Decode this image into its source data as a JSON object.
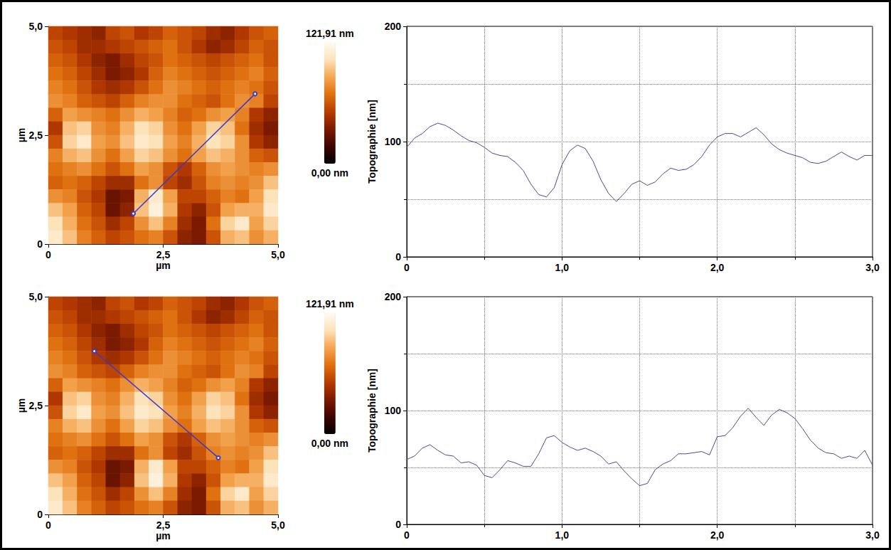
{
  "chart_data": [
    {
      "type": "heatmap",
      "xlabel": "µm",
      "ylabel": "µm",
      "xlim": [
        0,
        5
      ],
      "ylim": [
        0,
        5
      ],
      "xticks": [
        0,
        {
          "value": 2.5,
          "label": "2,5"
        },
        {
          "value": 5,
          "label": "5,0"
        }
      ],
      "yticks": [
        0,
        {
          "value": 2.5,
          "label": "2,5"
        },
        {
          "value": 5,
          "label": "5,0"
        }
      ],
      "cells": [
        [
          55,
          50,
          45,
          40,
          55,
          60,
          50,
          55,
          65,
          60,
          55,
          45,
          40,
          50,
          60,
          65
        ],
        [
          60,
          55,
          45,
          45,
          50,
          55,
          60,
          65,
          70,
          60,
          50,
          40,
          45,
          55,
          65,
          60
        ],
        [
          65,
          60,
          50,
          40,
          35,
          45,
          55,
          60,
          70,
          65,
          60,
          55,
          60,
          65,
          70,
          60
        ],
        [
          70,
          65,
          55,
          45,
          35,
          40,
          50,
          65,
          75,
          70,
          65,
          60,
          65,
          70,
          75,
          65
        ],
        [
          75,
          70,
          60,
          50,
          45,
          50,
          60,
          70,
          80,
          75,
          70,
          65,
          70,
          75,
          70,
          60
        ],
        [
          80,
          75,
          65,
          60,
          55,
          65,
          75,
          80,
          80,
          70,
          65,
          60,
          70,
          80,
          75,
          55
        ],
        [
          65,
          85,
          80,
          75,
          70,
          80,
          90,
          85,
          75,
          65,
          70,
          80,
          85,
          75,
          50,
          40
        ],
        [
          50,
          95,
          100,
          80,
          75,
          90,
          105,
          100,
          80,
          70,
          85,
          100,
          95,
          70,
          45,
          35
        ],
        [
          60,
          100,
          110,
          85,
          80,
          95,
          110,
          105,
          85,
          75,
          90,
          105,
          100,
          80,
          50,
          40
        ],
        [
          75,
          90,
          95,
          80,
          70,
          85,
          100,
          95,
          80,
          70,
          85,
          95,
          90,
          80,
          65,
          60
        ],
        [
          70,
          75,
          80,
          70,
          60,
          70,
          85,
          80,
          60,
          50,
          65,
          80,
          85,
          80,
          75,
          80
        ],
        [
          65,
          70,
          65,
          55,
          45,
          45,
          70,
          80,
          55,
          45,
          60,
          75,
          80,
          75,
          80,
          95
        ],
        [
          80,
          75,
          60,
          50,
          30,
          35,
          90,
          110,
          85,
          55,
          55,
          65,
          75,
          70,
          85,
          105
        ],
        [
          95,
          85,
          65,
          55,
          30,
          40,
          95,
          115,
          90,
          50,
          40,
          60,
          85,
          90,
          90,
          110
        ],
        [
          105,
          90,
          70,
          60,
          45,
          55,
          80,
          95,
          75,
          45,
          35,
          70,
          100,
          110,
          85,
          100
        ],
        [
          110,
          95,
          75,
          65,
          55,
          60,
          70,
          75,
          60,
          40,
          35,
          60,
          90,
          95,
          80,
          90
        ]
      ],
      "colorbar": {
        "range": [
          0,
          121.91
        ],
        "ticks": [
          {
            "value": 0,
            "label": "0,00 nm"
          },
          {
            "value": 121.91,
            "label": "121,91 nm"
          }
        ]
      },
      "profile_line": {
        "x": [
          1.85,
          4.5
        ],
        "y": [
          0.7,
          3.45
        ],
        "color": "#3a3ad0"
      }
    },
    {
      "type": "line",
      "ylabel": "Topographie [nm]",
      "xlim": [
        0,
        3
      ],
      "ylim": [
        0,
        200
      ],
      "xticks": [
        0,
        {
          "value": 1,
          "label": "1,0"
        },
        {
          "value": 2,
          "label": "2,0"
        },
        {
          "value": 3,
          "label": "3,0"
        }
      ],
      "yticks": [
        0,
        100,
        200
      ],
      "grid": true,
      "color": "#4a4a9a",
      "x": [
        0,
        0.05,
        0.1,
        0.15,
        0.2,
        0.25,
        0.3,
        0.35,
        0.4,
        0.45,
        0.5,
        0.55,
        0.6,
        0.65,
        0.7,
        0.75,
        0.8,
        0.85,
        0.9,
        0.95,
        1.0,
        1.05,
        1.1,
        1.15,
        1.2,
        1.25,
        1.3,
        1.35,
        1.4,
        1.45,
        1.5,
        1.55,
        1.6,
        1.65,
        1.7,
        1.75,
        1.8,
        1.85,
        1.9,
        1.95,
        2.0,
        2.05,
        2.1,
        2.15,
        2.2,
        2.25,
        2.3,
        2.35,
        2.4,
        2.45,
        2.5,
        2.55,
        2.6,
        2.65,
        2.7,
        2.75,
        2.8,
        2.85,
        2.9,
        2.95,
        3.0
      ],
      "values": [
        95,
        103,
        107,
        113,
        116,
        114,
        110,
        105,
        101,
        99,
        95,
        90,
        88,
        87,
        82,
        75,
        63,
        54,
        52,
        60,
        80,
        92,
        97,
        94,
        83,
        67,
        55,
        48,
        55,
        63,
        66,
        62,
        65,
        72,
        77,
        75,
        76,
        80,
        87,
        97,
        104,
        107,
        107,
        104,
        108,
        112,
        106,
        98,
        93,
        90,
        88,
        86,
        82,
        81,
        83,
        87,
        91,
        87,
        84,
        88,
        88
      ]
    },
    {
      "type": "heatmap",
      "xlabel": "µm",
      "ylabel": "µm",
      "xlim": [
        0,
        5
      ],
      "ylim": [
        0,
        5
      ],
      "xticks": [
        0,
        {
          "value": 2.5,
          "label": "2,5"
        },
        {
          "value": 5,
          "label": "5,0"
        }
      ],
      "yticks": [
        0,
        {
          "value": 2.5,
          "label": "2,5"
        },
        {
          "value": 5,
          "label": "5,0"
        }
      ],
      "cells": [
        [
          55,
          50,
          45,
          40,
          55,
          60,
          50,
          55,
          65,
          60,
          55,
          45,
          40,
          50,
          60,
          65
        ],
        [
          60,
          55,
          45,
          45,
          50,
          55,
          60,
          65,
          70,
          60,
          50,
          40,
          45,
          55,
          65,
          60
        ],
        [
          65,
          60,
          50,
          40,
          35,
          45,
          55,
          60,
          70,
          65,
          60,
          55,
          60,
          65,
          70,
          60
        ],
        [
          70,
          65,
          55,
          45,
          35,
          40,
          50,
          65,
          75,
          70,
          65,
          60,
          65,
          70,
          75,
          65
        ],
        [
          75,
          70,
          60,
          50,
          45,
          50,
          60,
          70,
          80,
          75,
          70,
          65,
          70,
          75,
          70,
          60
        ],
        [
          80,
          75,
          65,
          60,
          55,
          65,
          75,
          80,
          80,
          70,
          65,
          60,
          70,
          80,
          75,
          55
        ],
        [
          65,
          85,
          80,
          75,
          70,
          80,
          90,
          85,
          75,
          65,
          70,
          80,
          85,
          75,
          50,
          40
        ],
        [
          50,
          95,
          100,
          80,
          75,
          90,
          105,
          100,
          80,
          70,
          85,
          100,
          95,
          70,
          45,
          35
        ],
        [
          60,
          100,
          110,
          85,
          80,
          95,
          110,
          105,
          85,
          75,
          90,
          105,
          100,
          80,
          50,
          40
        ],
        [
          75,
          90,
          95,
          80,
          70,
          85,
          100,
          95,
          80,
          70,
          85,
          95,
          90,
          80,
          65,
          60
        ],
        [
          70,
          75,
          80,
          70,
          60,
          70,
          85,
          80,
          60,
          50,
          65,
          80,
          85,
          80,
          75,
          80
        ],
        [
          65,
          70,
          65,
          55,
          45,
          45,
          70,
          80,
          55,
          45,
          60,
          75,
          80,
          75,
          80,
          95
        ],
        [
          80,
          75,
          60,
          50,
          30,
          35,
          90,
          110,
          85,
          55,
          55,
          65,
          75,
          70,
          85,
          105
        ],
        [
          95,
          85,
          65,
          55,
          30,
          40,
          95,
          115,
          90,
          50,
          40,
          60,
          85,
          90,
          90,
          110
        ],
        [
          105,
          90,
          70,
          60,
          45,
          55,
          80,
          95,
          75,
          45,
          35,
          70,
          100,
          110,
          85,
          100
        ],
        [
          110,
          95,
          75,
          65,
          55,
          60,
          70,
          75,
          60,
          40,
          35,
          60,
          90,
          95,
          80,
          90
        ]
      ],
      "colorbar": {
        "range": [
          0,
          121.91
        ],
        "ticks": [
          {
            "value": 0,
            "label": "0,00 nm"
          },
          {
            "value": 121.91,
            "label": "121,91 nm"
          }
        ]
      },
      "profile_line": {
        "x": [
          1.0,
          3.7
        ],
        "y": [
          3.75,
          1.3
        ],
        "color": "#3a3ad0"
      }
    },
    {
      "type": "line",
      "ylabel": "Topographie [nm]",
      "xlim": [
        0,
        3
      ],
      "ylim": [
        0,
        200
      ],
      "xticks": [
        0,
        {
          "value": 1,
          "label": "1,0"
        },
        {
          "value": 2,
          "label": "2,0"
        },
        {
          "value": 3,
          "label": "3,0"
        }
      ],
      "yticks": [
        0,
        100,
        200
      ],
      "grid": true,
      "color": "#4a4a9a",
      "x": [
        0,
        0.05,
        0.1,
        0.15,
        0.2,
        0.25,
        0.3,
        0.35,
        0.4,
        0.45,
        0.5,
        0.55,
        0.6,
        0.65,
        0.7,
        0.75,
        0.8,
        0.85,
        0.9,
        0.95,
        1.0,
        1.05,
        1.1,
        1.15,
        1.2,
        1.25,
        1.3,
        1.35,
        1.4,
        1.45,
        1.5,
        1.55,
        1.6,
        1.65,
        1.7,
        1.75,
        1.8,
        1.85,
        1.9,
        1.95,
        2.0,
        2.05,
        2.1,
        2.15,
        2.2,
        2.25,
        2.3,
        2.35,
        2.4,
        2.45,
        2.5,
        2.55,
        2.6,
        2.65,
        2.7,
        2.75,
        2.8,
        2.85,
        2.9,
        2.95,
        3.0
      ],
      "values": [
        57,
        60,
        67,
        70,
        65,
        61,
        60,
        54,
        55,
        52,
        43,
        41,
        48,
        56,
        54,
        51,
        51,
        62,
        76,
        78,
        72,
        68,
        65,
        67,
        64,
        60,
        53,
        55,
        47,
        40,
        34,
        36,
        48,
        53,
        56,
        62,
        62,
        63,
        64,
        61,
        77,
        78,
        85,
        95,
        102,
        94,
        87,
        96,
        101,
        98,
        93,
        84,
        74,
        67,
        63,
        62,
        58,
        60,
        58,
        65,
        52
      ]
    }
  ]
}
